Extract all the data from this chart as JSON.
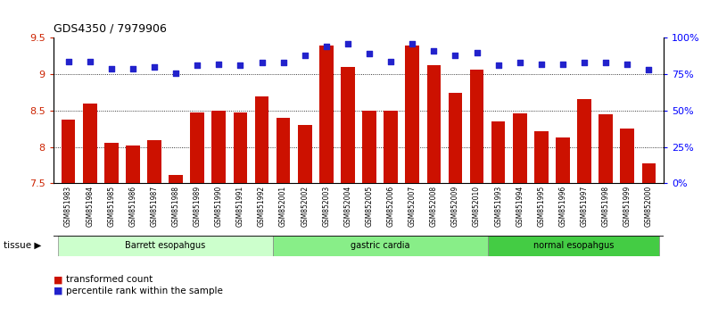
{
  "title": "GDS4350 / 7979906",
  "samples": [
    "GSM851983",
    "GSM851984",
    "GSM851985",
    "GSM851986",
    "GSM851987",
    "GSM851988",
    "GSM851989",
    "GSM851990",
    "GSM851991",
    "GSM851992",
    "GSM852001",
    "GSM852002",
    "GSM852003",
    "GSM852004",
    "GSM852005",
    "GSM852006",
    "GSM852007",
    "GSM852008",
    "GSM852009",
    "GSM852010",
    "GSM851993",
    "GSM851994",
    "GSM851995",
    "GSM851996",
    "GSM851997",
    "GSM851998",
    "GSM851999",
    "GSM852000"
  ],
  "bar_values": [
    8.38,
    8.6,
    8.06,
    8.02,
    8.09,
    7.62,
    8.47,
    8.5,
    8.47,
    8.7,
    8.4,
    8.3,
    9.4,
    9.1,
    8.5,
    8.5,
    9.4,
    9.13,
    8.75,
    9.06,
    8.35,
    8.46,
    8.22,
    8.13,
    8.66,
    8.45,
    8.25,
    7.78
  ],
  "dot_values": [
    84,
    84,
    79,
    79,
    80,
    76,
    81,
    82,
    81,
    83,
    83,
    88,
    94,
    96,
    89,
    84,
    96,
    91,
    88,
    90,
    81,
    83,
    82,
    82,
    83,
    83,
    82,
    78
  ],
  "bar_color": "#cc1100",
  "dot_color": "#2222cc",
  "ylim_left": [
    7.5,
    9.5
  ],
  "ylim_right": [
    0,
    100
  ],
  "yticks_left": [
    7.5,
    8.0,
    8.5,
    9.0,
    9.5
  ],
  "ytick_labels_left": [
    "7.5",
    "8",
    "8.5",
    "9",
    "9.5"
  ],
  "yticks_right": [
    0,
    25,
    50,
    75,
    100
  ],
  "ytick_labels_right": [
    "0%",
    "25%",
    "50%",
    "75%",
    "100%"
  ],
  "grid_values": [
    8.0,
    8.5,
    9.0
  ],
  "group_labels": [
    "Barrett esopahgus",
    "gastric cardia",
    "normal esopahgus"
  ],
  "group_ranges": [
    [
      0,
      9
    ],
    [
      10,
      19
    ],
    [
      20,
      27
    ]
  ],
  "group_colors": [
    "#ccffcc",
    "#88ee88",
    "#44cc44"
  ],
  "tissue_label": "tissue",
  "legend_items": [
    {
      "label": "transformed count",
      "color": "#cc1100"
    },
    {
      "label": "percentile rank within the sample",
      "color": "#2222cc"
    }
  ],
  "bar_width": 0.65,
  "xtick_bg": "#d0d0d0"
}
